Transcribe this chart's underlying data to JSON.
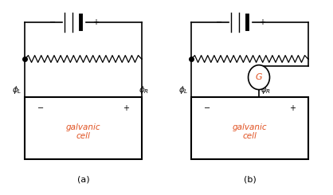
{
  "background": "#ffffff",
  "label_a": "(a)",
  "label_b": "(b)",
  "galvanic_text": "galvanic\ncell",
  "galvanic_color": "#e05020",
  "minus_sign": "−",
  "plus_sign": "+",
  "G_label": "G",
  "G_color": "#e05020"
}
